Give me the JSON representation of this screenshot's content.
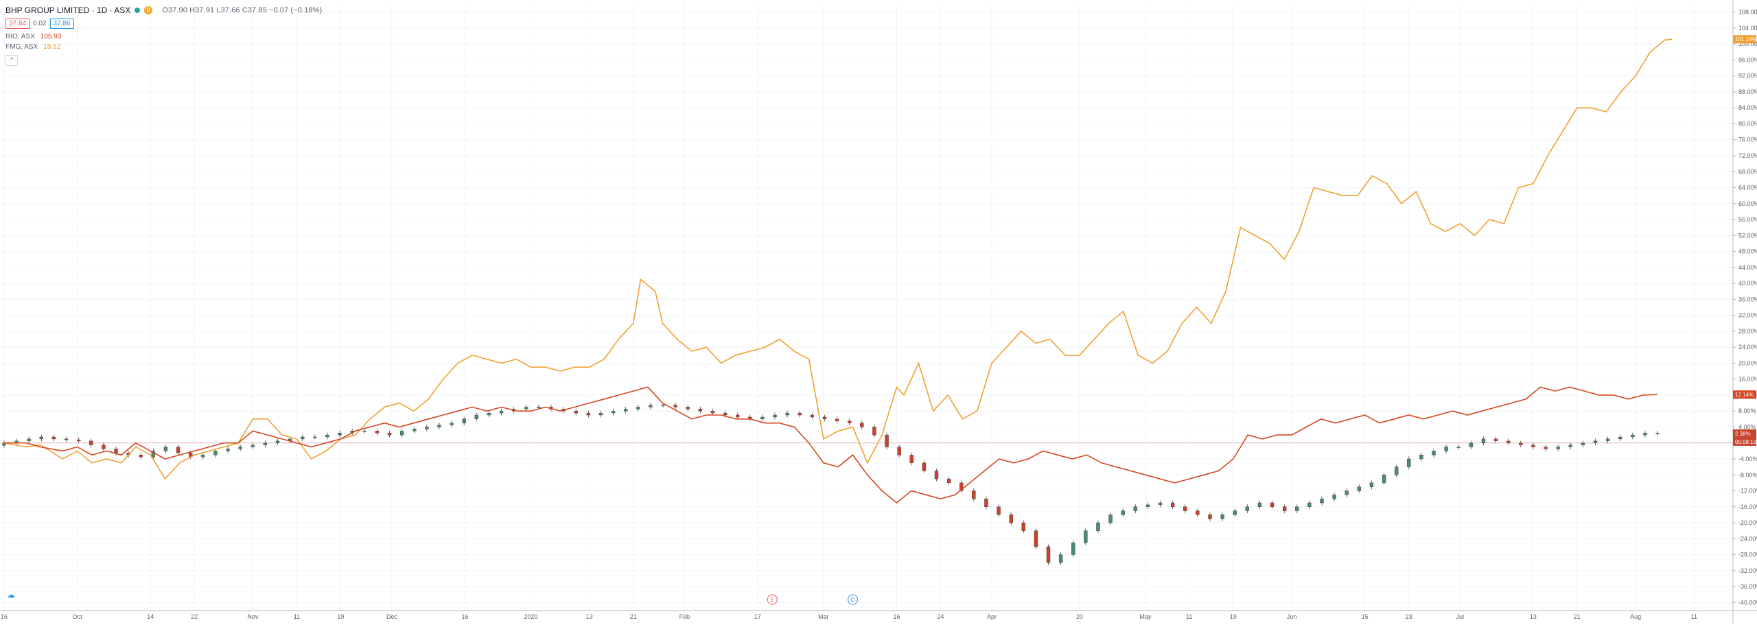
{
  "legend": {
    "symbol": "BHP GROUP LIMITED · 1D · ASX",
    "flag": "D",
    "ohlc": "O37.90 H37.91 L37.66 C37.85 −0.07 (−0.18%)",
    "bid": "37.84",
    "spread": "0.02",
    "ask": "37.86",
    "series": [
      {
        "symbol": "RIO, ASX",
        "value": "105.93"
      },
      {
        "symbol": "FMG, ASX",
        "value": "18.12"
      }
    ],
    "collapse_icon": "chevron-up-icon"
  },
  "colors": {
    "rio": "#d4461f",
    "fmg": "#f0a030",
    "up": "#4e8a6e",
    "down": "#c8432e"
  },
  "chart_data": {
    "type": "line",
    "yaxis": {
      "range": [
        -42,
        110
      ],
      "ticks": [
        "108.00%",
        "104.00%",
        "100.00%",
        "96.00%",
        "92.00%",
        "88.00%",
        "84.00%",
        "80.00%",
        "76.00%",
        "72.00%",
        "68.00%",
        "64.00%",
        "60.00%",
        "56.00%",
        "52.00%",
        "48.00%",
        "44.00%",
        "40.00%",
        "36.00%",
        "32.00%",
        "28.00%",
        "24.00%",
        "20.00%",
        "16.00%",
        "12.00%",
        "8.00%",
        "4.00%",
        "0.00%",
        "-4.00%",
        "-8.00%",
        "-12.00%",
        "-16.00%",
        "-20.00%",
        "-24.00%",
        "-28.00%",
        "-32.00%",
        "-36.00%",
        "-40.00%"
      ],
      "tick_values": [
        108,
        104,
        100,
        96,
        92,
        88,
        84,
        80,
        76,
        72,
        68,
        64,
        60,
        56,
        52,
        48,
        44,
        40,
        36,
        32,
        28,
        24,
        20,
        16,
        12,
        8,
        4,
        0,
        -4,
        -8,
        -12,
        -16,
        -20,
        -24,
        -28,
        -32,
        -36,
        -40
      ]
    },
    "xaxis": {
      "labels": [
        "16",
        "Oct",
        "14",
        "22",
        "Nov",
        "11",
        "19",
        "Dec",
        "16",
        "2020",
        "13",
        "21",
        "Feb",
        "17",
        "Mar",
        "16",
        "24",
        "Apr",
        "20",
        "May",
        "11",
        "19",
        "Jun",
        "15",
        "23",
        "Jul",
        "13",
        "21",
        "Aug",
        "11"
      ],
      "positions": [
        0,
        10,
        20,
        26,
        34,
        40,
        46,
        53,
        63,
        72,
        80,
        86,
        93,
        103,
        112,
        122,
        128,
        135,
        147,
        156,
        162,
        168,
        176,
        186,
        192,
        199,
        209,
        215,
        223,
        231
      ]
    },
    "price_labels": [
      {
        "text": "101.19%",
        "value": 101.19,
        "series": "FMG"
      },
      {
        "text": "12.14%",
        "value": 12.14,
        "series": "RIO"
      },
      {
        "text": "2.38%",
        "value": 2.38,
        "series": "BHP"
      },
      {
        "text": "05:08:19",
        "value": 0,
        "series": "timer"
      }
    ],
    "events": [
      {
        "label": "E",
        "x": 105
      },
      {
        "label": "D",
        "x": 116
      }
    ],
    "series": [
      {
        "name": "FMG, ASX",
        "color_key": "fmg",
        "points": [
          [
            0,
            0
          ],
          [
            3,
            -1
          ],
          [
            5,
            -0.5
          ],
          [
            8,
            -4
          ],
          [
            10,
            -2
          ],
          [
            12,
            -5
          ],
          [
            14,
            -4
          ],
          [
            16,
            -5
          ],
          [
            18,
            -1
          ],
          [
            20,
            -3
          ],
          [
            22,
            -9
          ],
          [
            24,
            -5
          ],
          [
            26,
            -3
          ],
          [
            28,
            -2
          ],
          [
            30,
            -1
          ],
          [
            32,
            0
          ],
          [
            34,
            6
          ],
          [
            36,
            6
          ],
          [
            38,
            2
          ],
          [
            40,
            1
          ],
          [
            42,
            -4
          ],
          [
            44,
            -2
          ],
          [
            46,
            1
          ],
          [
            48,
            2
          ],
          [
            50,
            6
          ],
          [
            52,
            9
          ],
          [
            54,
            10
          ],
          [
            56,
            8
          ],
          [
            58,
            11
          ],
          [
            60,
            16
          ],
          [
            62,
            20
          ],
          [
            64,
            22
          ],
          [
            66,
            21
          ],
          [
            68,
            20
          ],
          [
            70,
            21
          ],
          [
            72,
            19
          ],
          [
            74,
            19
          ],
          [
            76,
            18
          ],
          [
            78,
            19
          ],
          [
            80,
            19
          ],
          [
            82,
            21
          ],
          [
            84,
            26
          ],
          [
            86,
            30
          ],
          [
            87,
            41
          ],
          [
            89,
            38
          ],
          [
            90,
            30
          ],
          [
            92,
            26
          ],
          [
            94,
            23
          ],
          [
            96,
            24
          ],
          [
            98,
            20
          ],
          [
            100,
            22
          ],
          [
            102,
            23
          ],
          [
            104,
            24
          ],
          [
            106,
            26
          ],
          [
            108,
            23
          ],
          [
            110,
            21
          ],
          [
            112,
            1
          ],
          [
            114,
            3
          ],
          [
            116,
            4
          ],
          [
            118,
            -5
          ],
          [
            120,
            2
          ],
          [
            122,
            14
          ],
          [
            123,
            12
          ],
          [
            125,
            20
          ],
          [
            127,
            8
          ],
          [
            129,
            12
          ],
          [
            131,
            6
          ],
          [
            133,
            8
          ],
          [
            135,
            20
          ],
          [
            137,
            24
          ],
          [
            139,
            28
          ],
          [
            141,
            25
          ],
          [
            143,
            26
          ],
          [
            145,
            22
          ],
          [
            147,
            22
          ],
          [
            149,
            26
          ],
          [
            151,
            30
          ],
          [
            153,
            33
          ],
          [
            155,
            22
          ],
          [
            157,
            20
          ],
          [
            159,
            23
          ],
          [
            161,
            30
          ],
          [
            163,
            34
          ],
          [
            165,
            30
          ],
          [
            167,
            38
          ],
          [
            169,
            54
          ],
          [
            171,
            52
          ],
          [
            173,
            50
          ],
          [
            175,
            46
          ],
          [
            177,
            53
          ],
          [
            179,
            64
          ],
          [
            181,
            63
          ],
          [
            183,
            62
          ],
          [
            185,
            62
          ],
          [
            187,
            67
          ],
          [
            189,
            65
          ],
          [
            191,
            60
          ],
          [
            193,
            63
          ],
          [
            195,
            55
          ],
          [
            197,
            53
          ],
          [
            199,
            55
          ],
          [
            201,
            52
          ],
          [
            203,
            56
          ],
          [
            205,
            55
          ],
          [
            207,
            64
          ],
          [
            209,
            65
          ],
          [
            211,
            72
          ],
          [
            213,
            78
          ],
          [
            215,
            84
          ],
          [
            217,
            84
          ],
          [
            219,
            83
          ],
          [
            221,
            88
          ],
          [
            223,
            92
          ],
          [
            225,
            98
          ],
          [
            227,
            101
          ],
          [
            228,
            101.19
          ]
        ]
      },
      {
        "name": "RIO, ASX",
        "color_key": "rio",
        "points": [
          [
            0,
            0
          ],
          [
            3,
            0
          ],
          [
            5,
            -1
          ],
          [
            8,
            -2
          ],
          [
            10,
            -1
          ],
          [
            12,
            -3
          ],
          [
            14,
            -2
          ],
          [
            16,
            -3
          ],
          [
            18,
            0
          ],
          [
            20,
            -2
          ],
          [
            22,
            -4
          ],
          [
            24,
            -3
          ],
          [
            26,
            -2
          ],
          [
            28,
            -1
          ],
          [
            30,
            0
          ],
          [
            32,
            0
          ],
          [
            34,
            3
          ],
          [
            36,
            2
          ],
          [
            38,
            1
          ],
          [
            40,
            0
          ],
          [
            42,
            -1
          ],
          [
            44,
            0
          ],
          [
            46,
            1
          ],
          [
            48,
            3
          ],
          [
            50,
            4
          ],
          [
            52,
            5
          ],
          [
            54,
            4
          ],
          [
            56,
            5
          ],
          [
            58,
            6
          ],
          [
            60,
            7
          ],
          [
            62,
            8
          ],
          [
            64,
            9
          ],
          [
            66,
            8
          ],
          [
            68,
            9
          ],
          [
            70,
            8
          ],
          [
            72,
            8
          ],
          [
            74,
            9
          ],
          [
            76,
            8
          ],
          [
            78,
            9
          ],
          [
            80,
            10
          ],
          [
            82,
            11
          ],
          [
            84,
            12
          ],
          [
            86,
            13
          ],
          [
            88,
            14
          ],
          [
            90,
            10
          ],
          [
            92,
            8
          ],
          [
            94,
            6
          ],
          [
            96,
            7
          ],
          [
            98,
            7
          ],
          [
            100,
            6
          ],
          [
            102,
            6
          ],
          [
            104,
            5
          ],
          [
            106,
            5
          ],
          [
            108,
            4
          ],
          [
            110,
            0
          ],
          [
            112,
            -5
          ],
          [
            114,
            -6
          ],
          [
            116,
            -3
          ],
          [
            118,
            -8
          ],
          [
            120,
            -12
          ],
          [
            122,
            -15
          ],
          [
            124,
            -12
          ],
          [
            126,
            -13
          ],
          [
            128,
            -14
          ],
          [
            130,
            -13
          ],
          [
            132,
            -10
          ],
          [
            134,
            -7
          ],
          [
            136,
            -4
          ],
          [
            138,
            -5
          ],
          [
            140,
            -4
          ],
          [
            142,
            -2
          ],
          [
            144,
            -3
          ],
          [
            146,
            -4
          ],
          [
            148,
            -3
          ],
          [
            150,
            -5
          ],
          [
            152,
            -6
          ],
          [
            154,
            -7
          ],
          [
            156,
            -8
          ],
          [
            158,
            -9
          ],
          [
            160,
            -10
          ],
          [
            162,
            -9
          ],
          [
            164,
            -8
          ],
          [
            166,
            -7
          ],
          [
            168,
            -4
          ],
          [
            170,
            2
          ],
          [
            172,
            1
          ],
          [
            174,
            2
          ],
          [
            176,
            2
          ],
          [
            178,
            4
          ],
          [
            180,
            6
          ],
          [
            182,
            5
          ],
          [
            184,
            6
          ],
          [
            186,
            7
          ],
          [
            188,
            5
          ],
          [
            190,
            6
          ],
          [
            192,
            7
          ],
          [
            194,
            6
          ],
          [
            196,
            7
          ],
          [
            198,
            8
          ],
          [
            200,
            7
          ],
          [
            202,
            8
          ],
          [
            204,
            9
          ],
          [
            206,
            10
          ],
          [
            208,
            11
          ],
          [
            210,
            14
          ],
          [
            212,
            13
          ],
          [
            214,
            14
          ],
          [
            216,
            13
          ],
          [
            218,
            12
          ],
          [
            220,
            12
          ],
          [
            222,
            11
          ],
          [
            224,
            12
          ],
          [
            226,
            12.14
          ]
        ]
      },
      {
        "name": "BHP GROUP LIMITED",
        "kind": "candles",
        "closes": [
          0,
          0.5,
          1,
          1.5,
          1,
          0.8,
          0.5,
          -0.5,
          -1.5,
          -2.5,
          -3,
          -3.5,
          -2,
          -1,
          -2.5,
          -3.5,
          -3,
          -2,
          -1.5,
          -1,
          -0.5,
          0,
          0.5,
          1,
          1.5,
          1.5,
          2,
          2.5,
          3,
          3,
          2.5,
          2,
          3,
          3.5,
          4,
          4.5,
          5,
          6,
          7,
          7.5,
          8,
          8.5,
          9,
          9,
          8.5,
          8,
          7.5,
          7,
          7.5,
          8,
          8.5,
          9,
          9.5,
          9.5,
          9,
          8.5,
          8,
          7.5,
          7,
          6.5,
          6,
          6.5,
          7,
          7.5,
          7,
          6.5,
          6,
          5.5,
          5,
          4,
          2,
          -1,
          -3,
          -5,
          -7,
          -9,
          -10,
          -12,
          -14,
          -16,
          -18,
          -20,
          -22,
          -26,
          -30,
          -28,
          -25,
          -22,
          -20,
          -18,
          -17,
          -16,
          -15.5,
          -15,
          -16,
          -17,
          -18,
          -19,
          -18,
          -17,
          -16,
          -15,
          -16,
          -17,
          -16,
          -15,
          -14,
          -13,
          -12,
          -11,
          -10,
          -8,
          -6,
          -4,
          -3,
          -2,
          -1,
          -1,
          0,
          1,
          0.5,
          0,
          -0.5,
          -1,
          -1.5,
          -1,
          -0.5,
          0,
          0.5,
          1,
          1.5,
          2,
          2.5,
          2.38
        ]
      }
    ]
  }
}
